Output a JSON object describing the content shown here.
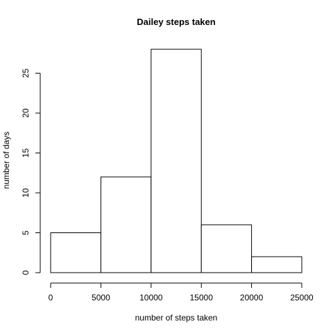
{
  "chart_data": {
    "type": "bar",
    "title": "Dailey steps taken",
    "xlabel": "number of steps taken",
    "ylabel": "number of days",
    "bins": [
      {
        "from": 0,
        "to": 5000,
        "count": 5
      },
      {
        "from": 5000,
        "to": 10000,
        "count": 12
      },
      {
        "from": 10000,
        "to": 15000,
        "count": 28
      },
      {
        "from": 15000,
        "to": 20000,
        "count": 6
      },
      {
        "from": 20000,
        "to": 25000,
        "count": 2
      }
    ],
    "x_ticks": [
      0,
      5000,
      10000,
      15000,
      20000,
      25000
    ],
    "y_ticks": [
      0,
      5,
      10,
      15,
      20,
      25
    ],
    "xlim": [
      0,
      25000
    ],
    "ylim": [
      0,
      28
    ],
    "grid": false,
    "bar_fill": "#ffffff",
    "bar_stroke": "#000000"
  }
}
